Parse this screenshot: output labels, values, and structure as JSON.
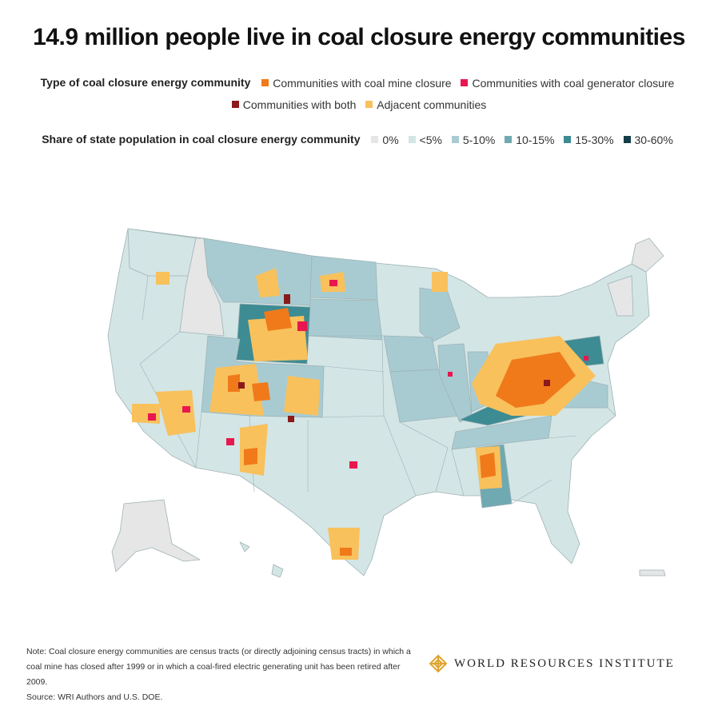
{
  "title": "14.9 million people live in coal closure energy communities",
  "type_legend": {
    "label": "Type of coal closure energy community",
    "items": [
      {
        "label": "Communities with coal mine closure",
        "color": "#f07a1a"
      },
      {
        "label": "Communities with coal generator closure",
        "color": "#e8174f"
      },
      {
        "label": "Communities with both",
        "color": "#8b1a1a"
      },
      {
        "label": "Adjacent communities",
        "color": "#f8c15c"
      }
    ]
  },
  "share_legend": {
    "label": "Share of state population in coal closure energy community",
    "items": [
      {
        "label": "0%",
        "color": "#e6e6e6"
      },
      {
        "label": "<5%",
        "color": "#d3e5e5"
      },
      {
        "label": "5-10%",
        "color": "#a8cbd2"
      },
      {
        "label": "10-15%",
        "color": "#6fa9b1"
      },
      {
        "label": "15-30%",
        "color": "#3d8b93"
      },
      {
        "label": "30-60%",
        "color": "#123f47"
      }
    ]
  },
  "note": "Note: Coal closure energy communities are census tracts (or directly adjoining census tracts) in which a coal mine has closed after 1999 or in which a coal-fired electric generating unit has been retired after 2009.",
  "source": "Source: WRI Authors and U.S. DOE.",
  "brand": "WORLD RESOURCES INSTITUTE"
}
